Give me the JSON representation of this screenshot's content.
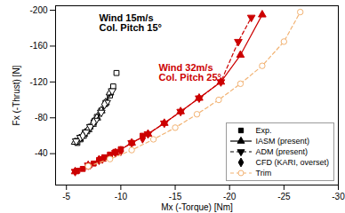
{
  "chart_data": {
    "type": "scatter",
    "xlabel": "Mx (-Torque) [Nm]",
    "ylabel": "Fx (-Thrust) [N]",
    "xlim": [
      -4,
      -30
    ],
    "ylim": [
      -5,
      -205
    ],
    "xticks": [
      -5,
      -10,
      -15,
      -20,
      -25,
      -30
    ],
    "yticks": [
      -40,
      -80,
      -120,
      -160,
      -200
    ],
    "grid": false,
    "legend": "bottom-right",
    "groups": [
      {
        "label": "Wind 15m/s\nCol. Pitch 15°",
        "color": "#000000",
        "series": [
          {
            "name": "Exp.",
            "marker": "open-square",
            "line_style": "none",
            "x": [
              -6.0,
              -6.3,
              -6.6,
              -6.9,
              -7.2,
              -7.5,
              -7.8,
              -8.2,
              -8.6,
              -9.0,
              -9.3,
              -9.6
            ],
            "values": [
              -52,
              -56,
              -60,
              -65,
              -70,
              -75,
              -81,
              -88,
              -96,
              -105,
              -115,
              -130
            ]
          },
          {
            "name": "IASM (present)",
            "marker": "open-triangle",
            "line_style": "solid",
            "x": [
              -5.8,
              -6.2,
              -6.6,
              -7.0,
              -7.4,
              -7.8,
              -8.2,
              -8.6,
              -9.0
            ],
            "values": [
              -53,
              -57,
              -62,
              -67,
              -73,
              -80,
              -88,
              -97,
              -108
            ]
          },
          {
            "name": "ADM (present)",
            "marker": "open-triangle-down",
            "line_style": "dashed",
            "x": [
              -5.9,
              -6.3,
              -6.8,
              -7.2,
              -7.7,
              -8.2,
              -8.7,
              -9.2
            ],
            "values": [
              -54,
              -58,
              -64,
              -70,
              -77,
              -86,
              -97,
              -110
            ]
          },
          {
            "name": "CFD (KARI, overset)",
            "marker": "open-diamond",
            "line_style": "none",
            "x": [
              -6.5,
              -7.5,
              -8.5
            ],
            "values": [
              -60,
              -75,
              -95
            ]
          }
        ]
      },
      {
        "label": "Wind 32m/s\nCol. Pitch 25°",
        "color": "#cc0000",
        "series": [
          {
            "name": "Exp.",
            "marker": "square",
            "line_style": "none",
            "x": [
              -6.0,
              -6.5,
              -7.0,
              -7.5,
              -8.0,
              -8.5,
              -9.0,
              -9.5,
              -10.0,
              -11.0,
              -12.0
            ],
            "values": [
              -21,
              -23,
              -26,
              -29,
              -33,
              -36,
              -39,
              -42,
              -45,
              -52,
              -60
            ]
          },
          {
            "name": "IASM (present)",
            "marker": "triangle",
            "line_style": "solid",
            "x": [
              -5.8,
              -7.0,
              -8.3,
              -9.5,
              -11.0,
              -12.5,
              -14.0,
              -15.5,
              -17.2,
              -19.2,
              -21.0,
              -23.0
            ],
            "values": [
              -20,
              -27,
              -34,
              -41,
              -52,
              -62,
              -74,
              -87,
              -102,
              -120,
              -150,
              -195
            ]
          },
          {
            "name": "ADM (present)",
            "marker": "triangle-down",
            "line_style": "dashed",
            "x": [
              -5.8,
              -7.0,
              -8.3,
              -9.5,
              -11.0,
              -12.5,
              -14.0,
              -15.5,
              -17.2,
              -19.2,
              -20.8,
              -22.0
            ],
            "values": [
              -20,
              -27,
              -34,
              -41,
              -52,
              -62,
              -74,
              -87,
              -102,
              -120,
              -165,
              -192
            ]
          },
          {
            "name": "CFD (KARI, overset)",
            "marker": "diamond",
            "line_style": "none",
            "x": [
              -8.0,
              -10.0,
              -12.0
            ],
            "values": [
              -33,
              -43,
              -57
            ]
          },
          {
            "name": "Trim",
            "marker": "open-circle",
            "line_style": "dashed",
            "color": "#f2b272",
            "x": [
              -7.0,
              -9.0,
              -11.0,
              -13.0,
              -15.0,
              -17.0,
              -19.0,
              -21.0,
              -23.0,
              -25.0,
              -26.5
            ],
            "values": [
              -26,
              -34,
              -44,
              -56,
              -69,
              -84,
              -100,
              -118,
              -138,
              -165,
              -198
            ]
          }
        ]
      }
    ]
  }
}
